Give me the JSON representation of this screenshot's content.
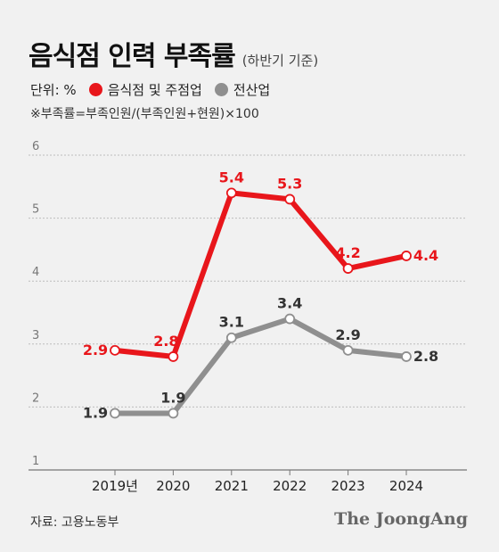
{
  "header": {
    "title": "음식점 인력 부족률",
    "subtitle": "(하반기 기준)"
  },
  "legend": {
    "unit": "단위: %",
    "items": [
      {
        "label": "음식점 및 주점업",
        "color": "#e8161b"
      },
      {
        "label": "전산업",
        "color": "#8f8f8f"
      }
    ]
  },
  "note": "※부족률=부족인원/(부족인원+현원)×100",
  "footer": {
    "source": "자료: 고용노동부",
    "brand": "The JoongAng"
  },
  "chart_data": {
    "type": "line",
    "categories": [
      "2019년",
      "2020",
      "2021",
      "2022",
      "2023",
      "2024"
    ],
    "yticks": [
      "1",
      "2",
      "3",
      "4",
      "5",
      "6"
    ],
    "ylim": [
      1,
      6
    ],
    "grid": true,
    "series": [
      {
        "name": "음식점 및 주점업",
        "color": "#e8161b",
        "values": [
          2.9,
          2.8,
          5.4,
          5.3,
          4.2,
          4.4
        ],
        "labels": [
          "2.9",
          "2.8",
          "5.4",
          "5.3",
          "4.2",
          "4.4"
        ]
      },
      {
        "name": "전산업",
        "color": "#8f8f8f",
        "values": [
          1.9,
          1.9,
          3.1,
          3.4,
          2.9,
          2.8
        ],
        "labels": [
          "1.9",
          "1.9",
          "3.1",
          "3.4",
          "2.9",
          "2.8"
        ]
      }
    ]
  }
}
